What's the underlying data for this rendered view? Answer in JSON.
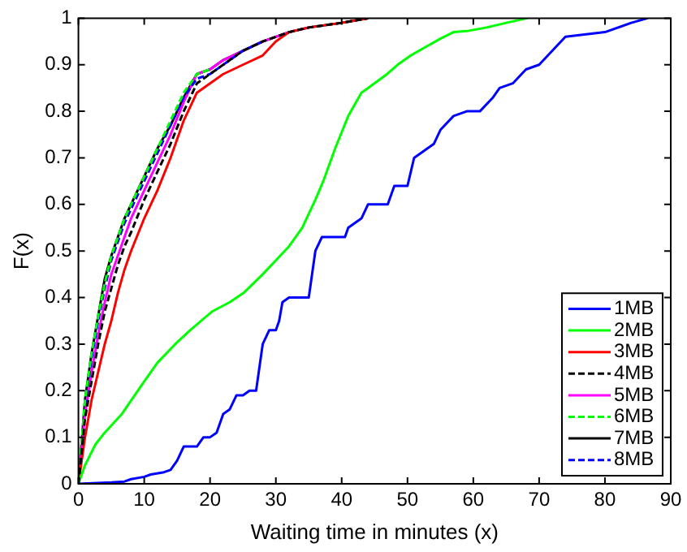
{
  "chart_data": {
    "type": "line",
    "xlabel": "Waiting time in minutes (x)",
    "ylabel": "F(x)",
    "xlim": [
      0,
      90
    ],
    "xticks": [
      0,
      10,
      20,
      30,
      40,
      50,
      60,
      70,
      80,
      90
    ],
    "ylim": [
      0,
      1
    ],
    "yticks": [
      0,
      0.1,
      0.2,
      0.3,
      0.4,
      0.5,
      0.6,
      0.7,
      0.8,
      0.9,
      1
    ],
    "grid": false,
    "legend": "bottom right",
    "marker": "none",
    "series": [
      {
        "name": "1MB",
        "color": "#0000ff",
        "line_style": "solid",
        "x": [
          0,
          5,
          7,
          8,
          10,
          11,
          13,
          14,
          15,
          16,
          18,
          19,
          20,
          21,
          22,
          23,
          24,
          25,
          26,
          27,
          28,
          29,
          30,
          30.5,
          31,
          32,
          35,
          36,
          37,
          40.5,
          41,
          42,
          43,
          44,
          45,
          47,
          48,
          50,
          51,
          52,
          54,
          55,
          57,
          59,
          61,
          63,
          64,
          66,
          68,
          70,
          72,
          74,
          80,
          84,
          86.5
        ],
        "values": [
          0,
          0.003,
          0.005,
          0.01,
          0.015,
          0.02,
          0.025,
          0.03,
          0.05,
          0.08,
          0.08,
          0.1,
          0.1,
          0.11,
          0.15,
          0.16,
          0.19,
          0.19,
          0.2,
          0.2,
          0.3,
          0.33,
          0.33,
          0.35,
          0.39,
          0.4,
          0.4,
          0.5,
          0.53,
          0.53,
          0.55,
          0.56,
          0.57,
          0.6,
          0.6,
          0.6,
          0.64,
          0.64,
          0.7,
          0.71,
          0.73,
          0.76,
          0.79,
          0.8,
          0.8,
          0.83,
          0.85,
          0.86,
          0.89,
          0.9,
          0.93,
          0.96,
          0.97,
          0.99,
          1
        ]
      },
      {
        "name": "2MB",
        "color": "#00ff00",
        "line_style": "solid",
        "x": [
          0,
          1,
          2.6,
          4,
          6.6,
          10,
          12,
          14.7,
          17,
          20.3,
          23,
          25.1,
          28,
          30,
          32,
          34,
          36,
          37.2,
          39,
          41,
          43,
          44,
          46.9,
          48.5,
          50.5,
          53,
          55,
          57,
          59.3,
          62,
          65,
          68.2
        ],
        "values": [
          0,
          0.04,
          0.085,
          0.11,
          0.15,
          0.22,
          0.26,
          0.3,
          0.33,
          0.37,
          0.39,
          0.41,
          0.45,
          0.48,
          0.51,
          0.55,
          0.61,
          0.65,
          0.72,
          0.79,
          0.84,
          0.85,
          0.88,
          0.9,
          0.92,
          0.94,
          0.956,
          0.97,
          0.973,
          0.98,
          0.99,
          1
        ]
      },
      {
        "name": "3MB",
        "color": "#ff0000",
        "line_style": "solid",
        "x": [
          0,
          1,
          2,
          3,
          4,
          5,
          6,
          7,
          8,
          10,
          12,
          14,
          16,
          18,
          20,
          22,
          25,
          28,
          30,
          32,
          35,
          40,
          44
        ],
        "values": [
          0,
          0.1,
          0.18,
          0.24,
          0.3,
          0.35,
          0.41,
          0.46,
          0.5,
          0.57,
          0.63,
          0.7,
          0.78,
          0.84,
          0.86,
          0.88,
          0.9,
          0.92,
          0.95,
          0.97,
          0.98,
          0.99,
          1
        ]
      },
      {
        "name": "4MB",
        "color": "#000000",
        "line_style": "dashed",
        "x": [
          0,
          1,
          2,
          3,
          4,
          5,
          6,
          7,
          8,
          10,
          12,
          14,
          16,
          18,
          20,
          22,
          25,
          28,
          30,
          32,
          35,
          40,
          44
        ],
        "values": [
          0,
          0.14,
          0.22,
          0.3,
          0.37,
          0.42,
          0.47,
          0.51,
          0.54,
          0.61,
          0.67,
          0.73,
          0.8,
          0.86,
          0.88,
          0.9,
          0.93,
          0.95,
          0.96,
          0.97,
          0.98,
          0.99,
          1
        ]
      },
      {
        "name": "5MB",
        "color": "#ff00ff",
        "line_style": "solid",
        "x": [
          0,
          1,
          2,
          3,
          4,
          5,
          6,
          7,
          8,
          10,
          12,
          14,
          16,
          18,
          20,
          22,
          25,
          28,
          30,
          32,
          35
        ],
        "values": [
          0,
          0.15,
          0.24,
          0.32,
          0.39,
          0.45,
          0.49,
          0.53,
          0.57,
          0.63,
          0.69,
          0.75,
          0.82,
          0.88,
          0.89,
          0.91,
          0.93,
          0.95,
          0.96,
          0.97,
          0.98
        ]
      },
      {
        "name": "6MB",
        "color": "#00ff00",
        "line_style": "dashed",
        "x": [
          0,
          1,
          2,
          3,
          4,
          5,
          6,
          7,
          8,
          10,
          12,
          14,
          16,
          18,
          20
        ],
        "values": [
          0,
          0.18,
          0.28,
          0.36,
          0.43,
          0.49,
          0.53,
          0.57,
          0.6,
          0.66,
          0.72,
          0.78,
          0.84,
          0.88,
          0.89
        ]
      },
      {
        "name": "7MB",
        "color": "#000000",
        "line_style": "solid",
        "x": [
          0,
          1,
          2,
          3,
          4,
          5,
          6,
          7,
          8,
          10,
          12,
          14,
          16,
          18,
          20,
          22,
          25,
          28,
          30,
          32,
          35,
          40,
          44
        ],
        "values": [
          0,
          0.18,
          0.28,
          0.36,
          0.44,
          0.49,
          0.53,
          0.57,
          0.6,
          0.66,
          0.72,
          0.77,
          0.83,
          0.88,
          0.89,
          0.91,
          0.93,
          0.95,
          0.96,
          0.97,
          0.98,
          0.99,
          1
        ]
      },
      {
        "name": "8MB",
        "color": "#0000ff",
        "line_style": "dashed",
        "x": [
          0,
          1,
          2,
          3,
          4,
          5,
          6,
          7,
          8,
          10,
          12,
          14,
          16,
          18,
          20,
          22,
          25,
          28
        ],
        "values": [
          0,
          0.17,
          0.27,
          0.35,
          0.42,
          0.48,
          0.52,
          0.56,
          0.59,
          0.65,
          0.71,
          0.77,
          0.83,
          0.87,
          0.88,
          0.9,
          0.93,
          0.95
        ]
      }
    ]
  }
}
